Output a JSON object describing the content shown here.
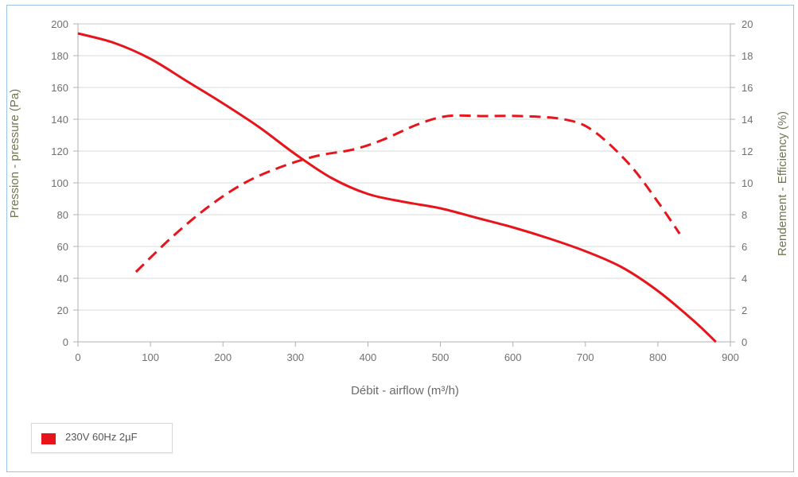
{
  "chart_data": {
    "type": "line",
    "xlabel": "Débit - airflow (m³/h)",
    "ylabel_left": "Pression - pressure (Pa)",
    "ylabel_right": "Rendement - Efficiency (%)",
    "xlim": [
      0,
      900
    ],
    "ylim_left": [
      0,
      200
    ],
    "ylim_right": [
      0,
      20
    ],
    "x_ticks": [
      "0",
      "100",
      "200",
      "300",
      "400",
      "500",
      "600",
      "700",
      "800",
      "900"
    ],
    "y_left_ticks": [
      "0",
      "20",
      "40",
      "60",
      "80",
      "100",
      "120",
      "140",
      "160",
      "180",
      "200"
    ],
    "y_right_ticks": [
      "0",
      "2",
      "4",
      "6",
      "8",
      "10",
      "12",
      "14",
      "16",
      "18",
      "20"
    ],
    "grid": "horizontal",
    "legend_position": "bottom-left",
    "color": "#e8141b",
    "series": [
      {
        "name": "230V 60Hz 2µF",
        "axis": "left",
        "style": "solid",
        "x": [
          0,
          50,
          100,
          150,
          200,
          250,
          300,
          350,
          400,
          450,
          500,
          550,
          600,
          650,
          700,
          750,
          800,
          850,
          880
        ],
        "y": [
          194,
          188,
          178,
          164,
          150,
          135,
          118,
          103,
          93,
          88,
          84,
          78,
          72,
          65,
          57,
          47,
          32,
          13,
          0
        ]
      },
      {
        "name": "230V 60Hz 2µF",
        "axis": "right",
        "style": "dashed",
        "x": [
          80,
          130,
          180,
          230,
          280,
          330,
          380,
          420,
          470,
          510,
          560,
          610,
          670,
          710,
          760,
          800,
          830
        ],
        "y": [
          4.4,
          6.6,
          8.5,
          10.0,
          11.0,
          11.7,
          12.1,
          12.7,
          13.7,
          14.2,
          14.2,
          14.2,
          14.0,
          13.3,
          11.2,
          8.8,
          6.8
        ]
      }
    ],
    "legend": [
      {
        "label": "230V 60Hz 2µF",
        "color": "#e8141b"
      }
    ]
  }
}
